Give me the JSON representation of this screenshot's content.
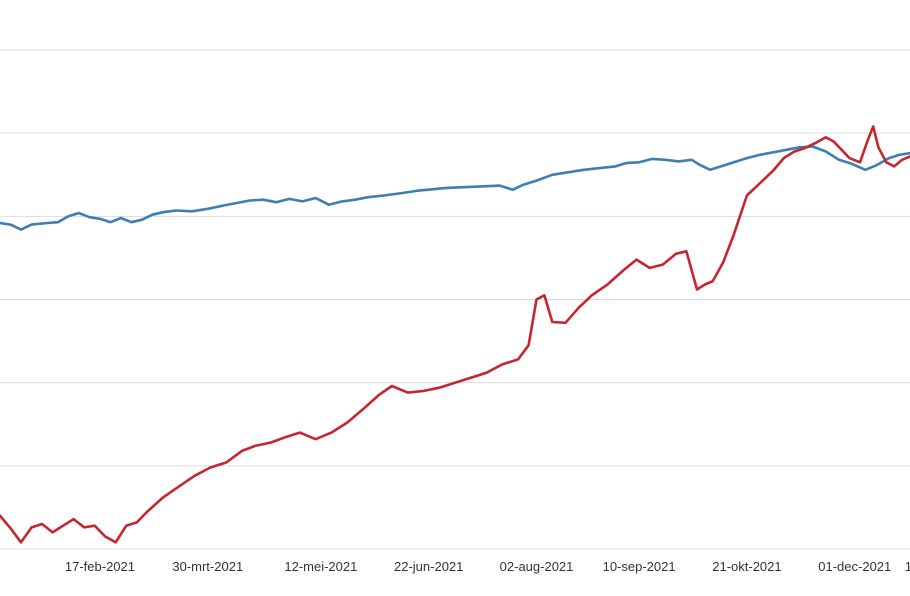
{
  "chart_data": {
    "type": "line",
    "x_type": "date",
    "xlim": [
      "2021-01-10",
      "2021-12-22"
    ],
    "ylim": [
      0,
      600
    ],
    "y_gridlines": [
      0,
      100,
      200,
      300,
      400,
      500,
      600
    ],
    "grid": true,
    "legend": "none",
    "x_ticks": [
      {
        "date": "2021-02-17",
        "label": "17-feb-2021"
      },
      {
        "date": "2021-03-30",
        "label": "30-mrt-2021"
      },
      {
        "date": "2021-05-12",
        "label": "12-mei-2021"
      },
      {
        "date": "2021-06-22",
        "label": "22-jun-2021"
      },
      {
        "date": "2021-08-02",
        "label": "02-aug-2021"
      },
      {
        "date": "2021-09-10",
        "label": "10-sep-2021"
      },
      {
        "date": "2021-10-21",
        "label": "21-okt-2021"
      },
      {
        "date": "2021-12-01",
        "label": "01-dec-2021"
      },
      {
        "date": "2021-12-20",
        "label": "1"
      }
    ],
    "series": [
      {
        "color": "#3d7fb0",
        "points": [
          [
            "2021-01-10",
            392
          ],
          [
            "2021-01-14",
            390
          ],
          [
            "2021-01-18",
            384
          ],
          [
            "2021-01-22",
            390
          ],
          [
            "2021-01-28",
            392
          ],
          [
            "2021-02-01",
            393
          ],
          [
            "2021-02-05",
            400
          ],
          [
            "2021-02-09",
            404
          ],
          [
            "2021-02-13",
            399
          ],
          [
            "2021-02-17",
            397
          ],
          [
            "2021-02-21",
            393
          ],
          [
            "2021-02-25",
            398
          ],
          [
            "2021-03-01",
            393
          ],
          [
            "2021-03-05",
            396
          ],
          [
            "2021-03-09",
            402
          ],
          [
            "2021-03-13",
            405
          ],
          [
            "2021-03-18",
            407
          ],
          [
            "2021-03-24",
            406
          ],
          [
            "2021-03-30",
            409
          ],
          [
            "2021-04-05",
            413
          ],
          [
            "2021-04-10",
            416
          ],
          [
            "2021-04-15",
            419
          ],
          [
            "2021-04-20",
            420
          ],
          [
            "2021-04-25",
            417
          ],
          [
            "2021-04-30",
            421
          ],
          [
            "2021-05-05",
            418
          ],
          [
            "2021-05-10",
            422
          ],
          [
            "2021-05-15",
            414
          ],
          [
            "2021-05-20",
            418
          ],
          [
            "2021-05-25",
            420
          ],
          [
            "2021-05-30",
            423
          ],
          [
            "2021-06-05",
            425
          ],
          [
            "2021-06-12",
            428
          ],
          [
            "2021-06-18",
            431
          ],
          [
            "2021-06-22",
            432
          ],
          [
            "2021-06-28",
            434
          ],
          [
            "2021-07-05",
            435
          ],
          [
            "2021-07-12",
            436
          ],
          [
            "2021-07-19",
            437
          ],
          [
            "2021-07-24",
            432
          ],
          [
            "2021-07-28",
            438
          ],
          [
            "2021-08-02",
            443
          ],
          [
            "2021-08-08",
            450
          ],
          [
            "2021-08-14",
            453
          ],
          [
            "2021-08-20",
            456
          ],
          [
            "2021-08-26",
            458
          ],
          [
            "2021-09-01",
            460
          ],
          [
            "2021-09-05",
            464
          ],
          [
            "2021-09-10",
            465
          ],
          [
            "2021-09-15",
            469
          ],
          [
            "2021-09-20",
            468
          ],
          [
            "2021-09-25",
            466
          ],
          [
            "2021-09-30",
            468
          ],
          [
            "2021-10-03",
            462
          ],
          [
            "2021-10-07",
            456
          ],
          [
            "2021-10-12",
            461
          ],
          [
            "2021-10-16",
            465
          ],
          [
            "2021-10-21",
            470
          ],
          [
            "2021-10-26",
            474
          ],
          [
            "2021-10-31",
            477
          ],
          [
            "2021-11-05",
            480
          ],
          [
            "2021-11-10",
            483
          ],
          [
            "2021-11-15",
            484
          ],
          [
            "2021-11-20",
            478
          ],
          [
            "2021-11-25",
            468
          ],
          [
            "2021-11-30",
            463
          ],
          [
            "2021-12-05",
            456
          ],
          [
            "2021-12-09",
            461
          ],
          [
            "2021-12-14",
            470
          ],
          [
            "2021-12-18",
            474
          ],
          [
            "2021-12-22",
            476
          ]
        ]
      },
      {
        "color": "#c8262e",
        "points": [
          [
            "2021-01-10",
            40
          ],
          [
            "2021-01-14",
            25
          ],
          [
            "2021-01-18",
            8
          ],
          [
            "2021-01-22",
            26
          ],
          [
            "2021-01-26",
            30
          ],
          [
            "2021-01-30",
            20
          ],
          [
            "2021-02-03",
            28
          ],
          [
            "2021-02-07",
            36
          ],
          [
            "2021-02-11",
            26
          ],
          [
            "2021-02-15",
            28
          ],
          [
            "2021-02-19",
            15
          ],
          [
            "2021-02-23",
            8
          ],
          [
            "2021-02-27",
            28
          ],
          [
            "2021-03-03",
            32
          ],
          [
            "2021-03-07",
            45
          ],
          [
            "2021-03-13",
            62
          ],
          [
            "2021-03-19",
            75
          ],
          [
            "2021-03-25",
            88
          ],
          [
            "2021-03-31",
            98
          ],
          [
            "2021-04-06",
            104
          ],
          [
            "2021-04-12",
            118
          ],
          [
            "2021-04-17",
            124
          ],
          [
            "2021-04-23",
            128
          ],
          [
            "2021-04-29",
            135
          ],
          [
            "2021-05-04",
            140
          ],
          [
            "2021-05-10",
            132
          ],
          [
            "2021-05-16",
            140
          ],
          [
            "2021-05-22",
            152
          ],
          [
            "2021-05-28",
            168
          ],
          [
            "2021-06-03",
            185
          ],
          [
            "2021-06-08",
            196
          ],
          [
            "2021-06-14",
            188
          ],
          [
            "2021-06-20",
            190
          ],
          [
            "2021-06-26",
            194
          ],
          [
            "2021-07-02",
            200
          ],
          [
            "2021-07-08",
            206
          ],
          [
            "2021-07-14",
            212
          ],
          [
            "2021-07-20",
            222
          ],
          [
            "2021-07-26",
            228
          ],
          [
            "2021-07-30",
            245
          ],
          [
            "2021-08-02",
            300
          ],
          [
            "2021-08-05",
            305
          ],
          [
            "2021-08-08",
            273
          ],
          [
            "2021-08-13",
            272
          ],
          [
            "2021-08-18",
            290
          ],
          [
            "2021-08-23",
            305
          ],
          [
            "2021-08-29",
            318
          ],
          [
            "2021-09-04",
            335
          ],
          [
            "2021-09-09",
            348
          ],
          [
            "2021-09-14",
            338
          ],
          [
            "2021-09-19",
            342
          ],
          [
            "2021-09-24",
            355
          ],
          [
            "2021-09-28",
            358
          ],
          [
            "2021-10-02",
            312
          ],
          [
            "2021-10-05",
            318
          ],
          [
            "2021-10-08",
            322
          ],
          [
            "2021-10-12",
            345
          ],
          [
            "2021-10-16",
            378
          ],
          [
            "2021-10-21",
            425
          ],
          [
            "2021-10-26",
            440
          ],
          [
            "2021-10-31",
            455
          ],
          [
            "2021-11-04",
            470
          ],
          [
            "2021-11-08",
            478
          ],
          [
            "2021-11-12",
            482
          ],
          [
            "2021-11-16",
            488
          ],
          [
            "2021-11-20",
            495
          ],
          [
            "2021-11-23",
            490
          ],
          [
            "2021-11-26",
            480
          ],
          [
            "2021-11-29",
            470
          ],
          [
            "2021-12-03",
            465
          ],
          [
            "2021-12-06",
            492
          ],
          [
            "2021-12-08",
            508
          ],
          [
            "2021-12-10",
            483
          ],
          [
            "2021-12-13",
            465
          ],
          [
            "2021-12-16",
            460
          ],
          [
            "2021-12-19",
            468
          ],
          [
            "2021-12-22",
            472
          ]
        ]
      }
    ]
  }
}
